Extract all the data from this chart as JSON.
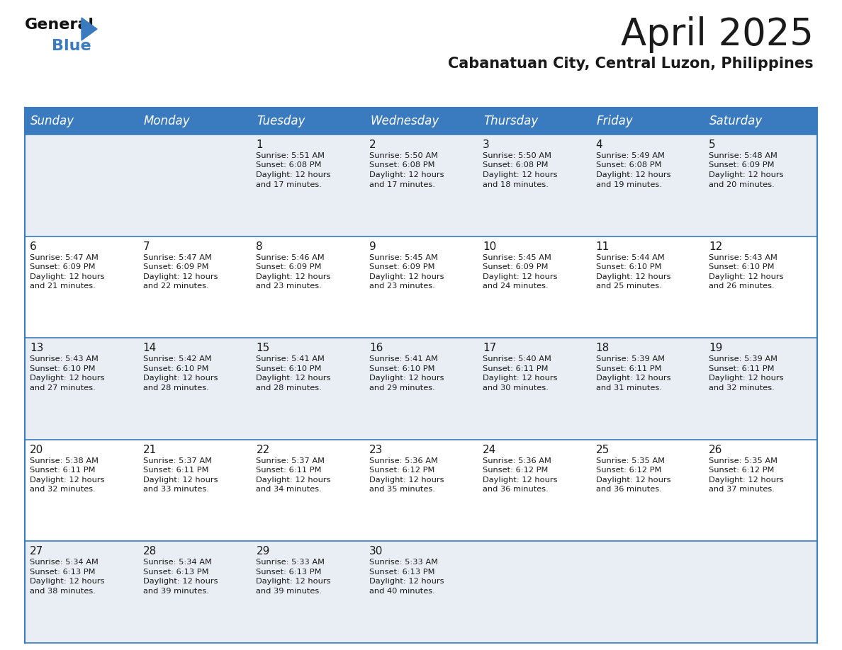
{
  "title": "April 2025",
  "subtitle": "Cabanatuan City, Central Luzon, Philippines",
  "header_color": "#3a7abf",
  "header_text_color": "#ffffff",
  "cell_bg_light": "#e8eef4",
  "cell_bg_white": "#ffffff",
  "border_color": "#3a7abf",
  "text_color": "#1a1a1a",
  "day_names": [
    "Sunday",
    "Monday",
    "Tuesday",
    "Wednesday",
    "Thursday",
    "Friday",
    "Saturday"
  ],
  "days": [
    {
      "date": 1,
      "col": 2,
      "row": 0,
      "sunrise": "5:51 AM",
      "sunset": "6:08 PM",
      "daylight_line1": "Daylight: 12 hours",
      "daylight_line2": "and 17 minutes."
    },
    {
      "date": 2,
      "col": 3,
      "row": 0,
      "sunrise": "5:50 AM",
      "sunset": "6:08 PM",
      "daylight_line1": "Daylight: 12 hours",
      "daylight_line2": "and 17 minutes."
    },
    {
      "date": 3,
      "col": 4,
      "row": 0,
      "sunrise": "5:50 AM",
      "sunset": "6:08 PM",
      "daylight_line1": "Daylight: 12 hours",
      "daylight_line2": "and 18 minutes."
    },
    {
      "date": 4,
      "col": 5,
      "row": 0,
      "sunrise": "5:49 AM",
      "sunset": "6:08 PM",
      "daylight_line1": "Daylight: 12 hours",
      "daylight_line2": "and 19 minutes."
    },
    {
      "date": 5,
      "col": 6,
      "row": 0,
      "sunrise": "5:48 AM",
      "sunset": "6:09 PM",
      "daylight_line1": "Daylight: 12 hours",
      "daylight_line2": "and 20 minutes."
    },
    {
      "date": 6,
      "col": 0,
      "row": 1,
      "sunrise": "5:47 AM",
      "sunset": "6:09 PM",
      "daylight_line1": "Daylight: 12 hours",
      "daylight_line2": "and 21 minutes."
    },
    {
      "date": 7,
      "col": 1,
      "row": 1,
      "sunrise": "5:47 AM",
      "sunset": "6:09 PM",
      "daylight_line1": "Daylight: 12 hours",
      "daylight_line2": "and 22 minutes."
    },
    {
      "date": 8,
      "col": 2,
      "row": 1,
      "sunrise": "5:46 AM",
      "sunset": "6:09 PM",
      "daylight_line1": "Daylight: 12 hours",
      "daylight_line2": "and 23 minutes."
    },
    {
      "date": 9,
      "col": 3,
      "row": 1,
      "sunrise": "5:45 AM",
      "sunset": "6:09 PM",
      "daylight_line1": "Daylight: 12 hours",
      "daylight_line2": "and 23 minutes."
    },
    {
      "date": 10,
      "col": 4,
      "row": 1,
      "sunrise": "5:45 AM",
      "sunset": "6:09 PM",
      "daylight_line1": "Daylight: 12 hours",
      "daylight_line2": "and 24 minutes."
    },
    {
      "date": 11,
      "col": 5,
      "row": 1,
      "sunrise": "5:44 AM",
      "sunset": "6:10 PM",
      "daylight_line1": "Daylight: 12 hours",
      "daylight_line2": "and 25 minutes."
    },
    {
      "date": 12,
      "col": 6,
      "row": 1,
      "sunrise": "5:43 AM",
      "sunset": "6:10 PM",
      "daylight_line1": "Daylight: 12 hours",
      "daylight_line2": "and 26 minutes."
    },
    {
      "date": 13,
      "col": 0,
      "row": 2,
      "sunrise": "5:43 AM",
      "sunset": "6:10 PM",
      "daylight_line1": "Daylight: 12 hours",
      "daylight_line2": "and 27 minutes."
    },
    {
      "date": 14,
      "col": 1,
      "row": 2,
      "sunrise": "5:42 AM",
      "sunset": "6:10 PM",
      "daylight_line1": "Daylight: 12 hours",
      "daylight_line2": "and 28 minutes."
    },
    {
      "date": 15,
      "col": 2,
      "row": 2,
      "sunrise": "5:41 AM",
      "sunset": "6:10 PM",
      "daylight_line1": "Daylight: 12 hours",
      "daylight_line2": "and 28 minutes."
    },
    {
      "date": 16,
      "col": 3,
      "row": 2,
      "sunrise": "5:41 AM",
      "sunset": "6:10 PM",
      "daylight_line1": "Daylight: 12 hours",
      "daylight_line2": "and 29 minutes."
    },
    {
      "date": 17,
      "col": 4,
      "row": 2,
      "sunrise": "5:40 AM",
      "sunset": "6:11 PM",
      "daylight_line1": "Daylight: 12 hours",
      "daylight_line2": "and 30 minutes."
    },
    {
      "date": 18,
      "col": 5,
      "row": 2,
      "sunrise": "5:39 AM",
      "sunset": "6:11 PM",
      "daylight_line1": "Daylight: 12 hours",
      "daylight_line2": "and 31 minutes."
    },
    {
      "date": 19,
      "col": 6,
      "row": 2,
      "sunrise": "5:39 AM",
      "sunset": "6:11 PM",
      "daylight_line1": "Daylight: 12 hours",
      "daylight_line2": "and 32 minutes."
    },
    {
      "date": 20,
      "col": 0,
      "row": 3,
      "sunrise": "5:38 AM",
      "sunset": "6:11 PM",
      "daylight_line1": "Daylight: 12 hours",
      "daylight_line2": "and 32 minutes."
    },
    {
      "date": 21,
      "col": 1,
      "row": 3,
      "sunrise": "5:37 AM",
      "sunset": "6:11 PM",
      "daylight_line1": "Daylight: 12 hours",
      "daylight_line2": "and 33 minutes."
    },
    {
      "date": 22,
      "col": 2,
      "row": 3,
      "sunrise": "5:37 AM",
      "sunset": "6:11 PM",
      "daylight_line1": "Daylight: 12 hours",
      "daylight_line2": "and 34 minutes."
    },
    {
      "date": 23,
      "col": 3,
      "row": 3,
      "sunrise": "5:36 AM",
      "sunset": "6:12 PM",
      "daylight_line1": "Daylight: 12 hours",
      "daylight_line2": "and 35 minutes."
    },
    {
      "date": 24,
      "col": 4,
      "row": 3,
      "sunrise": "5:36 AM",
      "sunset": "6:12 PM",
      "daylight_line1": "Daylight: 12 hours",
      "daylight_line2": "and 36 minutes."
    },
    {
      "date": 25,
      "col": 5,
      "row": 3,
      "sunrise": "5:35 AM",
      "sunset": "6:12 PM",
      "daylight_line1": "Daylight: 12 hours",
      "daylight_line2": "and 36 minutes."
    },
    {
      "date": 26,
      "col": 6,
      "row": 3,
      "sunrise": "5:35 AM",
      "sunset": "6:12 PM",
      "daylight_line1": "Daylight: 12 hours",
      "daylight_line2": "and 37 minutes."
    },
    {
      "date": 27,
      "col": 0,
      "row": 4,
      "sunrise": "5:34 AM",
      "sunset": "6:13 PM",
      "daylight_line1": "Daylight: 12 hours",
      "daylight_line2": "and 38 minutes."
    },
    {
      "date": 28,
      "col": 1,
      "row": 4,
      "sunrise": "5:34 AM",
      "sunset": "6:13 PM",
      "daylight_line1": "Daylight: 12 hours",
      "daylight_line2": "and 39 minutes."
    },
    {
      "date": 29,
      "col": 2,
      "row": 4,
      "sunrise": "5:33 AM",
      "sunset": "6:13 PM",
      "daylight_line1": "Daylight: 12 hours",
      "daylight_line2": "and 39 minutes."
    },
    {
      "date": 30,
      "col": 3,
      "row": 4,
      "sunrise": "5:33 AM",
      "sunset": "6:13 PM",
      "daylight_line1": "Daylight: 12 hours",
      "daylight_line2": "and 40 minutes."
    }
  ],
  "logo_general_color": "#111111",
  "logo_blue_color": "#3a7abf",
  "title_fontsize": 38,
  "subtitle_fontsize": 15,
  "header_fontsize": 12,
  "date_fontsize": 11,
  "cell_fontsize": 8.2
}
